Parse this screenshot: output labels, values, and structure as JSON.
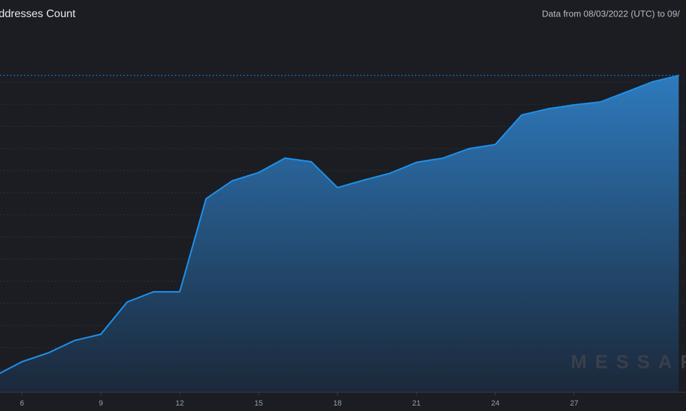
{
  "chart_data": {
    "type": "area",
    "title": "ddresses Count",
    "subtitle": "Data from 08/03/2022 (UTC) to 09/",
    "watermark": "MESSAR",
    "x": [
      5,
      6,
      7,
      8,
      9,
      10,
      11,
      12,
      13,
      14,
      15,
      16,
      17,
      18,
      19,
      20,
      21,
      22,
      23,
      24,
      25,
      26,
      27,
      28,
      29,
      30,
      31
    ],
    "values": [
      0.74,
      1.36,
      1.76,
      2.32,
      2.6,
      4.06,
      4.52,
      4.52,
      8.73,
      9.54,
      9.91,
      10.56,
      10.4,
      9.23,
      9.57,
      9.88,
      10.37,
      10.56,
      10.99,
      11.18,
      12.51,
      12.79,
      12.97,
      13.1,
      13.56,
      14.02,
      14.3
    ],
    "color": "#1e8fe8",
    "xlim": [
      5.165,
      31.25
    ],
    "xticks": [
      6,
      9,
      12,
      15,
      18,
      21,
      24,
      27
    ],
    "ylim": [
      0,
      15
    ],
    "yticks": [
      1,
      2,
      3,
      4,
      5,
      6,
      7,
      8,
      9,
      10,
      11,
      12,
      13,
      14
    ],
    "grid": true
  }
}
